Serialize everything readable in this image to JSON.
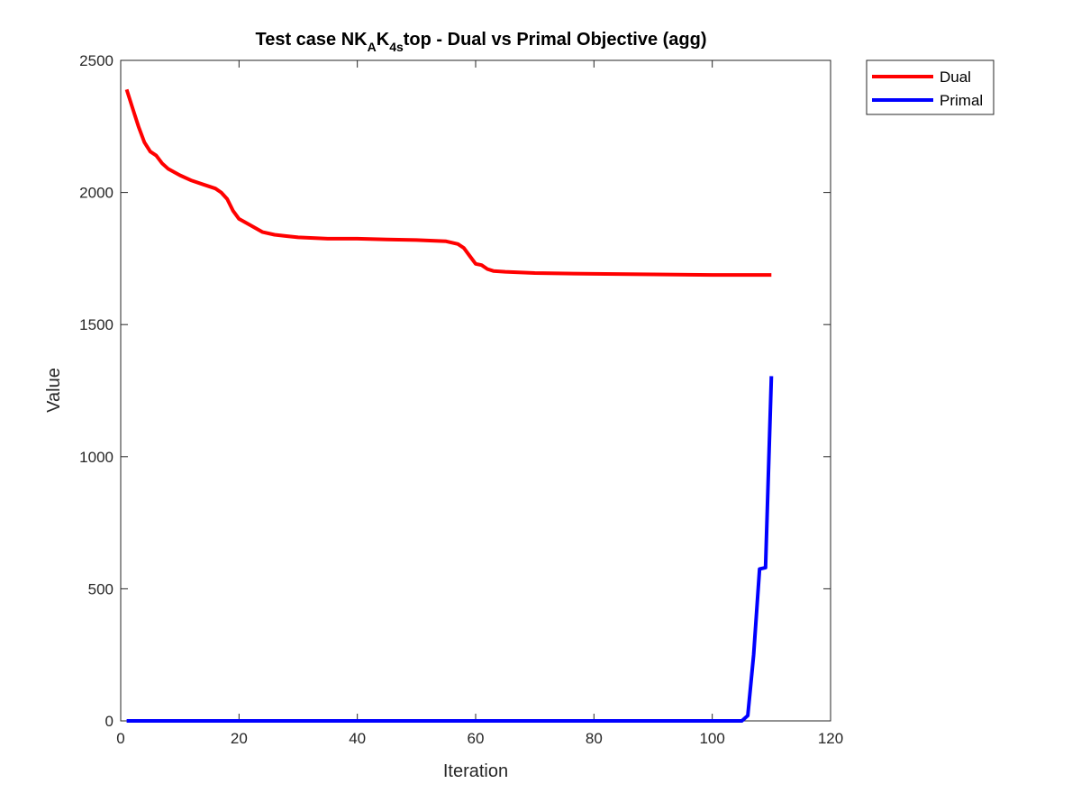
{
  "chart_data": {
    "type": "line",
    "title": {
      "prefix": "Test case NK",
      "sub1": "A",
      "mid": "K",
      "sub2": "4s",
      "suffix": "top - Dual vs Primal Objective (agg)"
    },
    "xlabel": "Iteration",
    "ylabel": "Value",
    "xlim": [
      0,
      120
    ],
    "ylim": [
      0,
      2500
    ],
    "xticks": [
      0,
      20,
      40,
      60,
      80,
      100,
      120
    ],
    "yticks": [
      0,
      500,
      1000,
      1500,
      2000,
      2500
    ],
    "grid": false,
    "legend_position": "outside-top-right",
    "series": [
      {
        "name": "Dual",
        "color": "#ff0000",
        "x": [
          1,
          2,
          3,
          4,
          5,
          6,
          7,
          8,
          10,
          12,
          14,
          16,
          17,
          18,
          19,
          20,
          22,
          24,
          26,
          28,
          30,
          35,
          40,
          45,
          50,
          55,
          57,
          58,
          59,
          60,
          61,
          62,
          63,
          65,
          70,
          80,
          90,
          100,
          110
        ],
        "y": [
          2390,
          2320,
          2250,
          2190,
          2155,
          2140,
          2110,
          2090,
          2065,
          2045,
          2030,
          2015,
          2000,
          1975,
          1930,
          1900,
          1875,
          1850,
          1840,
          1835,
          1830,
          1825,
          1825,
          1822,
          1820,
          1815,
          1805,
          1790,
          1760,
          1730,
          1725,
          1710,
          1703,
          1700,
          1695,
          1692,
          1690,
          1688,
          1688
        ]
      },
      {
        "name": "Primal",
        "color": "#0000ff",
        "x": [
          1,
          20,
          40,
          60,
          80,
          100,
          105,
          106,
          107,
          108,
          109,
          110
        ],
        "y": [
          0,
          0,
          0,
          0,
          0,
          0,
          0,
          20,
          250,
          575,
          580,
          1305
        ]
      }
    ]
  }
}
